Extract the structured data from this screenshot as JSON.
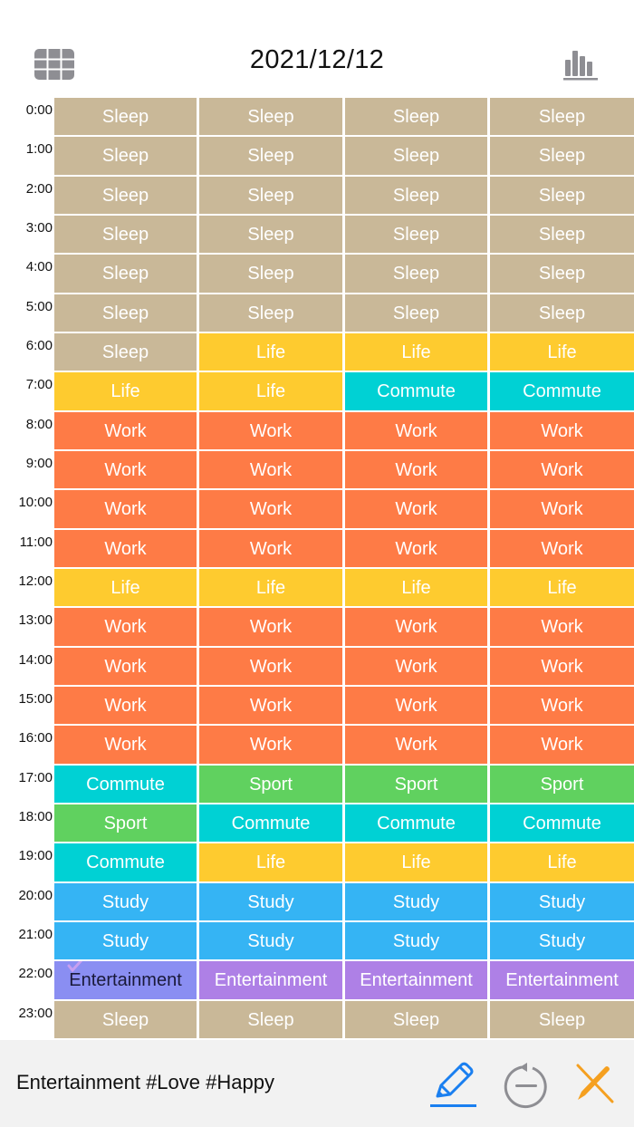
{
  "header": {
    "date": "2021/12/12",
    "left_icon": "grid-view-icon",
    "right_icon": "bar-chart-icon"
  },
  "colors": {
    "Sleep": "#c9b898",
    "Life": "#fecb2f",
    "Commute": "#00d1d4",
    "Work": "#fe7b46",
    "Sport": "#60d15f",
    "Study": "#35b4f4",
    "Entertainment": "#ae80e6",
    "Selected": "#8a8ef2",
    "check": "#c79ff0"
  },
  "times": [
    "0:00",
    "1:00",
    "2:00",
    "3:00",
    "4:00",
    "5:00",
    "6:00",
    "7:00",
    "8:00",
    "9:00",
    "10:00",
    "11:00",
    "12:00",
    "13:00",
    "14:00",
    "15:00",
    "16:00",
    "17:00",
    "18:00",
    "19:00",
    "20:00",
    "21:00",
    "22:00",
    "23:00"
  ],
  "rows": [
    [
      "Sleep",
      "Sleep",
      "Sleep",
      "Sleep"
    ],
    [
      "Sleep",
      "Sleep",
      "Sleep",
      "Sleep"
    ],
    [
      "Sleep",
      "Sleep",
      "Sleep",
      "Sleep"
    ],
    [
      "Sleep",
      "Sleep",
      "Sleep",
      "Sleep"
    ],
    [
      "Sleep",
      "Sleep",
      "Sleep",
      "Sleep"
    ],
    [
      "Sleep",
      "Sleep",
      "Sleep",
      "Sleep"
    ],
    [
      "Sleep",
      "Life",
      "Life",
      "Life"
    ],
    [
      "Life",
      "Life",
      "Commute",
      "Commute"
    ],
    [
      "Work",
      "Work",
      "Work",
      "Work"
    ],
    [
      "Work",
      "Work",
      "Work",
      "Work"
    ],
    [
      "Work",
      "Work",
      "Work",
      "Work"
    ],
    [
      "Work",
      "Work",
      "Work",
      "Work"
    ],
    [
      "Life",
      "Life",
      "Life",
      "Life"
    ],
    [
      "Work",
      "Work",
      "Work",
      "Work"
    ],
    [
      "Work",
      "Work",
      "Work",
      "Work"
    ],
    [
      "Work",
      "Work",
      "Work",
      "Work"
    ],
    [
      "Work",
      "Work",
      "Work",
      "Work"
    ],
    [
      "Commute",
      "Sport",
      "Sport",
      "Sport"
    ],
    [
      "Sport",
      "Commute",
      "Commute",
      "Commute"
    ],
    [
      "Commute",
      "Life",
      "Life",
      "Life"
    ],
    [
      "Study",
      "Study",
      "Study",
      "Study"
    ],
    [
      "Study",
      "Study",
      "Study",
      "Study"
    ],
    [
      "Entertainment",
      "Entertainment",
      "Entertainment",
      "Entertainment"
    ],
    [
      "Sleep",
      "Sleep",
      "Sleep",
      "Sleep"
    ]
  ],
  "selected": {
    "row": 22,
    "col": 0
  },
  "footer": {
    "note": "Entertainment #Love #Happy",
    "edit_icon": "pencil-icon",
    "undo_icon": "undo-remove-icon",
    "clear_icon": "clear-pencil-icon",
    "edit_color": "#1a7ff0",
    "undo_color": "#8e8e93",
    "clear_color": "#f5a020"
  }
}
